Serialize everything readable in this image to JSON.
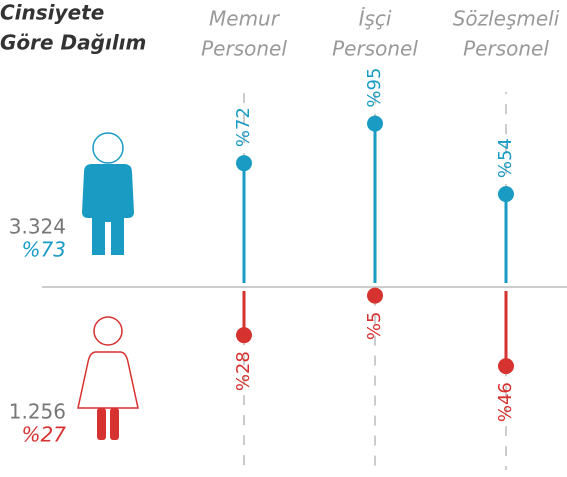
{
  "chart_data": {
    "type": "lollipop",
    "title": [
      "Cinsiyete",
      "Göre Dağılım"
    ],
    "categories": [
      [
        "Memur",
        "Personel"
      ],
      [
        "İşçi",
        "Personel"
      ],
      [
        "Sözleşmeli",
        "Personel"
      ]
    ],
    "ylim": [
      0,
      100
    ],
    "series": [
      {
        "name": "Erkek",
        "color": "#1a9bc4",
        "direction": "up",
        "values": [
          72,
          95,
          54
        ],
        "value_labels": [
          "%72",
          "%95",
          "%54"
        ],
        "total": {
          "value": 3324,
          "label": "3.324"
        },
        "share": {
          "value": 73,
          "label": "%73"
        }
      },
      {
        "name": "Kadın",
        "color": "#d6322f",
        "direction": "down",
        "values": [
          28,
          5,
          46
        ],
        "value_labels": [
          "%28",
          "%5",
          "%46"
        ],
        "total": {
          "value": 1256,
          "label": "1.256"
        },
        "share": {
          "value": 27,
          "label": "%27"
        }
      }
    ]
  }
}
